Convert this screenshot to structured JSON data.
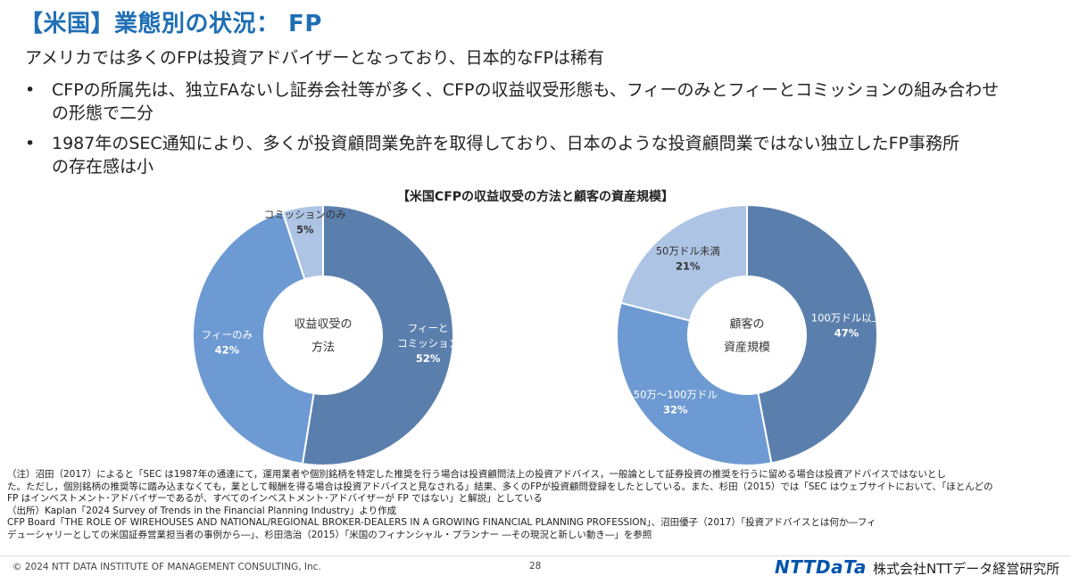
{
  "header": {
    "title": "【米国】業態別の状況： FP",
    "subtitle": "アメリカでは多くのFPは投資アドバイザーとなっており、日本的なFPは稀有"
  },
  "bullets": [
    {
      "line1": "CFPの所属先は、独立FAないし証券会社等が多く、CFPの収益収受形態も、フィーのみとフィーとコミッションの組み合わせ",
      "line2": "の形態で二分"
    },
    {
      "line1": "1987年のSEC通知により、多くが投資顧問業免許を取得しており、日本のような投資顧問業ではない独立したFP事務所",
      "line2": "の存在感は小"
    }
  ],
  "chart_title": "【米国CFPの収益収受の方法と顧客の資産規模】",
  "chart_data": [
    {
      "type": "pie",
      "center_label": [
        "収益収受の",
        "方法"
      ],
      "slices": [
        {
          "label": [
            "フィーと",
            "コミッション"
          ],
          "value": 52,
          "pct_label": "52%",
          "color": "#5b7fad"
        },
        {
          "label": [
            "フィーのみ"
          ],
          "value": 42,
          "pct_label": "42%",
          "color": "#6d9ad2"
        },
        {
          "label": [
            "コミッションのみ"
          ],
          "value": 5,
          "pct_label": "5%",
          "color": "#aec4e4"
        }
      ]
    },
    {
      "type": "pie",
      "center_label": [
        "顧客の",
        "資産規模"
      ],
      "slices": [
        {
          "label": [
            "100万ドル以上"
          ],
          "value": 47,
          "pct_label": "47%",
          "color": "#5b7fad"
        },
        {
          "label": [
            "50万～100万ドル"
          ],
          "value": 32,
          "pct_label": "32%",
          "color": "#6d9ad2"
        },
        {
          "label": [
            "50万ドル未満"
          ],
          "value": 21,
          "pct_label": "21%",
          "color": "#aec4e4"
        }
      ]
    }
  ],
  "notes": [
    "（注）沼田（2017）によると「SEC は1987年の通達にて，運用業者や個別銘柄を特定した推奨を行う場合は投資顧問法上の投資アドバイス，一般論として証券投資の推奨を行うに留める場合は投資アドバイスではないとし",
    "た。ただし，個別銘柄の推奨等に踏み込まなくても，業として報酬を得る場合は投資アドバイスと見なされる」結果、多くのFPが投資顧問登録をしたとしている。また、杉田（2015）では「SEC はウェブサイトにおいて、「ほとんどの",
    "FP はインベストメント･アドバイザーであるが、すべてのインベストメント･アドバイザーが FP ではない」と解説」としている",
    "（出所）Kaplan「2024 Survey of Trends in the Financial Planning Industry」より作成",
    "CFP Board「THE ROLE OF WIREHOUSES AND NATIONAL/REGIONAL BROKER-DEALERS IN A GROWING FINANCIAL PLANNING PROFESSION」、沼田優子（2017）「投資アドバイスとは何か―フィ",
    "デューシャリーとしての米国証券営業担当者の事例から―」、杉田浩治（2015）「米国のフィナンシャル・プランナー ―その現況と新しい動き―」を参照"
  ],
  "footer": {
    "copyright": "© 2024 NTT DATA INSTITUTE OF MANAGEMENT CONSULTING, Inc.",
    "page": "28",
    "logo": "NTTDaTa",
    "company": "株式会社NTTデータ経営研究所"
  }
}
